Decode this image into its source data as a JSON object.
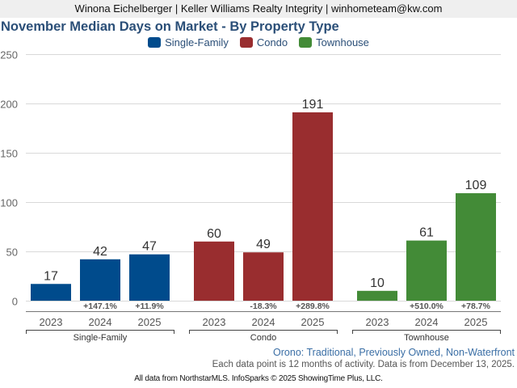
{
  "header": {
    "agent_line": "Winona Eichelberger | Keller Williams Realty Integrity | winhometeam@kw.com"
  },
  "chart_data": {
    "type": "bar",
    "title": "November Median Days on Market - By Property Type",
    "xlabel": "",
    "ylabel": "",
    "ylim": [
      0,
      250
    ],
    "yticks": [
      "0",
      "50",
      "100",
      "150",
      "200",
      "250"
    ],
    "grid": true,
    "legend_position": "top-center",
    "groups": [
      {
        "name": "Single-Family",
        "color": "#004b8c",
        "categories": [
          "2023",
          "2024",
          "2025"
        ],
        "values": [
          17,
          42,
          47
        ],
        "value_labels": [
          "17",
          "42",
          "47"
        ],
        "changes": [
          "",
          "+147.1%",
          "+11.9%"
        ]
      },
      {
        "name": "Condo",
        "color": "#992d2f",
        "categories": [
          "2023",
          "2024",
          "2025"
        ],
        "values": [
          60,
          49,
          191
        ],
        "value_labels": [
          "60",
          "49",
          "191"
        ],
        "changes": [
          "",
          "-18.3%",
          "+289.8%"
        ]
      },
      {
        "name": "Townhouse",
        "color": "#438b37",
        "categories": [
          "2023",
          "2024",
          "2025"
        ],
        "values": [
          10,
          61,
          109
        ],
        "value_labels": [
          "10",
          "61",
          "109"
        ],
        "changes": [
          "",
          "+510.0%",
          "+78.7%"
        ]
      }
    ]
  },
  "footer": {
    "subtitle": "Orono: Traditional, Previously Owned, Non-Waterfront",
    "note": "Each data point is 12 months of activity. Data is from December 13, 2025.",
    "credit": "All data from NorthstarMLS. InfoSparks © 2025 ShowingTime Plus, LLC."
  }
}
